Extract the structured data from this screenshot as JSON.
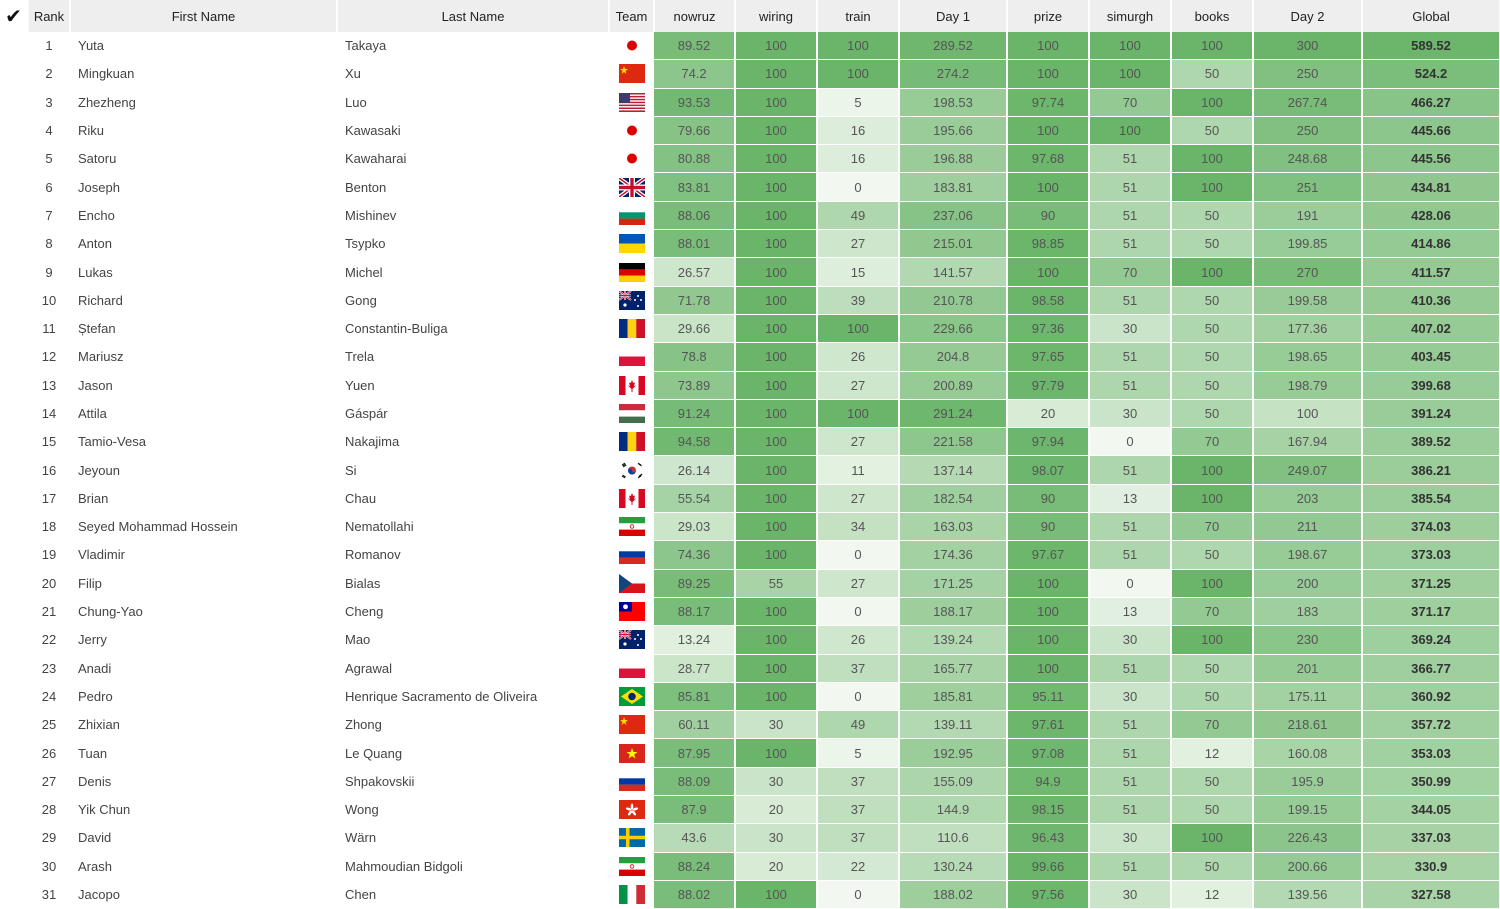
{
  "header": {
    "check": "✔",
    "columns": [
      "Rank",
      "First Name",
      "Last Name",
      "Team",
      "nowruz",
      "wiring",
      "train",
      "Day 1",
      "prize",
      "simurgh",
      "books",
      "Day 2",
      "Global"
    ]
  },
  "colors": {
    "header_bg": "#eeeeee",
    "scale_low": "#f2f8f0",
    "scale_high": "#6ab56a"
  },
  "rows": [
    {
      "rank": "1",
      "first": "Yuta",
      "last": "Takaya",
      "flag": "jp",
      "vals": [
        "89.52",
        "100",
        "100",
        "289.52",
        "100",
        "100",
        "100",
        "300",
        "589.52"
      ]
    },
    {
      "rank": "2",
      "first": "Mingkuan",
      "last": "Xu",
      "flag": "cn",
      "vals": [
        "74.2",
        "100",
        "100",
        "274.2",
        "100",
        "100",
        "50",
        "250",
        "524.2"
      ]
    },
    {
      "rank": "3",
      "first": "Zhezheng",
      "last": "Luo",
      "flag": "us",
      "vals": [
        "93.53",
        "100",
        "5",
        "198.53",
        "97.74",
        "70",
        "100",
        "267.74",
        "466.27"
      ]
    },
    {
      "rank": "4",
      "first": "Riku",
      "last": "Kawasaki",
      "flag": "jp",
      "vals": [
        "79.66",
        "100",
        "16",
        "195.66",
        "100",
        "100",
        "50",
        "250",
        "445.66"
      ]
    },
    {
      "rank": "5",
      "first": "Satoru",
      "last": "Kawaharai",
      "flag": "jp",
      "vals": [
        "80.88",
        "100",
        "16",
        "196.88",
        "97.68",
        "51",
        "100",
        "248.68",
        "445.56"
      ]
    },
    {
      "rank": "6",
      "first": "Joseph",
      "last": "Benton",
      "flag": "gb",
      "vals": [
        "83.81",
        "100",
        "0",
        "183.81",
        "100",
        "51",
        "100",
        "251",
        "434.81"
      ]
    },
    {
      "rank": "7",
      "first": "Encho",
      "last": "Mishinev",
      "flag": "bg",
      "vals": [
        "88.06",
        "100",
        "49",
        "237.06",
        "90",
        "51",
        "50",
        "191",
        "428.06"
      ]
    },
    {
      "rank": "8",
      "first": "Anton",
      "last": "Tsypko",
      "flag": "ua",
      "vals": [
        "88.01",
        "100",
        "27",
        "215.01",
        "98.85",
        "51",
        "50",
        "199.85",
        "414.86"
      ]
    },
    {
      "rank": "9",
      "first": "Lukas",
      "last": "Michel",
      "flag": "de",
      "vals": [
        "26.57",
        "100",
        "15",
        "141.57",
        "100",
        "70",
        "100",
        "270",
        "411.57"
      ]
    },
    {
      "rank": "10",
      "first": "Richard",
      "last": "Gong",
      "flag": "au",
      "vals": [
        "71.78",
        "100",
        "39",
        "210.78",
        "98.58",
        "51",
        "50",
        "199.58",
        "410.36"
      ]
    },
    {
      "rank": "11",
      "first": "Ștefan",
      "last": "Constantin-Buliga",
      "flag": "ro",
      "vals": [
        "29.66",
        "100",
        "100",
        "229.66",
        "97.36",
        "30",
        "50",
        "177.36",
        "407.02"
      ]
    },
    {
      "rank": "12",
      "first": "Mariusz",
      "last": "Trela",
      "flag": "pl",
      "vals": [
        "78.8",
        "100",
        "26",
        "204.8",
        "97.65",
        "51",
        "50",
        "198.65",
        "403.45"
      ]
    },
    {
      "rank": "13",
      "first": "Jason",
      "last": "Yuen",
      "flag": "ca",
      "vals": [
        "73.89",
        "100",
        "27",
        "200.89",
        "97.79",
        "51",
        "50",
        "198.79",
        "399.68"
      ]
    },
    {
      "rank": "14",
      "first": "Attila",
      "last": "Gáspár",
      "flag": "hu",
      "vals": [
        "91.24",
        "100",
        "100",
        "291.24",
        "20",
        "30",
        "50",
        "100",
        "391.24"
      ]
    },
    {
      "rank": "15",
      "first": "Tamio-Vesa",
      "last": "Nakajima",
      "flag": "ro",
      "vals": [
        "94.58",
        "100",
        "27",
        "221.58",
        "97.94",
        "0",
        "70",
        "167.94",
        "389.52"
      ]
    },
    {
      "rank": "16",
      "first": "Jeyoun",
      "last": "Si",
      "flag": "kr",
      "vals": [
        "26.14",
        "100",
        "11",
        "137.14",
        "98.07",
        "51",
        "100",
        "249.07",
        "386.21"
      ]
    },
    {
      "rank": "17",
      "first": "Brian",
      "last": "Chau",
      "flag": "ca",
      "vals": [
        "55.54",
        "100",
        "27",
        "182.54",
        "90",
        "13",
        "100",
        "203",
        "385.54"
      ]
    },
    {
      "rank": "18",
      "first": "Seyed Mohammad Hossein",
      "last": "Nematollahi",
      "flag": "ir",
      "vals": [
        "29.03",
        "100",
        "34",
        "163.03",
        "90",
        "51",
        "70",
        "211",
        "374.03"
      ]
    },
    {
      "rank": "19",
      "first": "Vladimir",
      "last": "Romanov",
      "flag": "ru",
      "vals": [
        "74.36",
        "100",
        "0",
        "174.36",
        "97.67",
        "51",
        "50",
        "198.67",
        "373.03"
      ]
    },
    {
      "rank": "20",
      "first": "Filip",
      "last": "Bialas",
      "flag": "cz",
      "vals": [
        "89.25",
        "55",
        "27",
        "171.25",
        "100",
        "0",
        "100",
        "200",
        "371.25"
      ]
    },
    {
      "rank": "21",
      "first": "Chung-Yao",
      "last": "Cheng",
      "flag": "tw",
      "vals": [
        "88.17",
        "100",
        "0",
        "188.17",
        "100",
        "13",
        "70",
        "183",
        "371.17"
      ]
    },
    {
      "rank": "22",
      "first": "Jerry",
      "last": "Mao",
      "flag": "au",
      "vals": [
        "13.24",
        "100",
        "26",
        "139.24",
        "100",
        "30",
        "100",
        "230",
        "369.24"
      ]
    },
    {
      "rank": "23",
      "first": "Anadi",
      "last": "Agrawal",
      "flag": "pl",
      "vals": [
        "28.77",
        "100",
        "37",
        "165.77",
        "100",
        "51",
        "50",
        "201",
        "366.77"
      ]
    },
    {
      "rank": "24",
      "first": "Pedro",
      "last": "Henrique Sacramento de Oliveira",
      "flag": "br",
      "vals": [
        "85.81",
        "100",
        "0",
        "185.81",
        "95.11",
        "30",
        "50",
        "175.11",
        "360.92"
      ]
    },
    {
      "rank": "25",
      "first": "Zhixian",
      "last": "Zhong",
      "flag": "cn",
      "vals": [
        "60.11",
        "30",
        "49",
        "139.11",
        "97.61",
        "51",
        "70",
        "218.61",
        "357.72"
      ]
    },
    {
      "rank": "26",
      "first": "Tuan",
      "last": "Le Quang",
      "flag": "vn",
      "vals": [
        "87.95",
        "100",
        "5",
        "192.95",
        "97.08",
        "51",
        "12",
        "160.08",
        "353.03"
      ]
    },
    {
      "rank": "27",
      "first": "Denis",
      "last": "Shpakovskii",
      "flag": "ru",
      "vals": [
        "88.09",
        "30",
        "37",
        "155.09",
        "94.9",
        "51",
        "50",
        "195.9",
        "350.99"
      ]
    },
    {
      "rank": "28",
      "first": "Yik Chun",
      "last": "Wong",
      "flag": "hk",
      "vals": [
        "87.9",
        "20",
        "37",
        "144.9",
        "98.15",
        "51",
        "50",
        "199.15",
        "344.05"
      ]
    },
    {
      "rank": "29",
      "first": "David",
      "last": "Wärn",
      "flag": "se",
      "vals": [
        "43.6",
        "30",
        "37",
        "110.6",
        "96.43",
        "30",
        "100",
        "226.43",
        "337.03"
      ]
    },
    {
      "rank": "30",
      "first": "Arash",
      "last": "Mahmoudian Bidgoli",
      "flag": "ir",
      "vals": [
        "88.24",
        "20",
        "22",
        "130.24",
        "99.66",
        "51",
        "50",
        "200.66",
        "330.9"
      ]
    },
    {
      "rank": "31",
      "first": "Jacopo",
      "last": "Chen",
      "flag": "it",
      "vals": [
        "88.02",
        "100",
        "0",
        "188.02",
        "97.56",
        "30",
        "12",
        "139.56",
        "327.58"
      ]
    }
  ]
}
